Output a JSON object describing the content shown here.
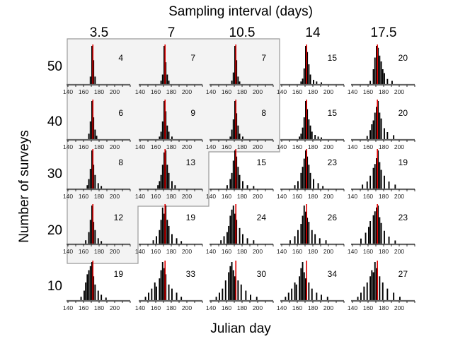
{
  "chart_data": {
    "type": "bar",
    "title": "",
    "top_label": "Sampling interval (days)",
    "xlabel": "Julian day",
    "ylabel": "Number of surveys",
    "column_labels": [
      "3.5",
      "7",
      "10.5",
      "14",
      "17.5"
    ],
    "row_labels": [
      "50",
      "40",
      "30",
      "20",
      "10"
    ],
    "x_axis": {
      "range": [
        140,
        220
      ],
      "ticks": [
        "140",
        "160",
        "180",
        "200"
      ]
    },
    "reference_line": {
      "x": 172,
      "color": "#e00000"
    },
    "shaded_region": "gray outlined block (top-left, staircase boundary)",
    "panels": [
      {
        "row": 0,
        "col": 0,
        "label": "4",
        "shaded": true,
        "bins": [
          [
            168,
            20
          ],
          [
            170,
            95
          ],
          [
            172,
            60
          ],
          [
            174,
            20
          ]
        ]
      },
      {
        "row": 0,
        "col": 1,
        "label": "7",
        "shaded": true,
        "bins": [
          [
            166,
            10
          ],
          [
            168,
            25
          ],
          [
            170,
            95
          ],
          [
            172,
            55
          ],
          [
            174,
            25
          ],
          [
            176,
            10
          ]
        ]
      },
      {
        "row": 0,
        "col": 2,
        "label": "7",
        "shaded": true,
        "bins": [
          [
            166,
            10
          ],
          [
            168,
            30
          ],
          [
            170,
            95
          ],
          [
            172,
            60
          ],
          [
            174,
            20
          ],
          [
            176,
            8
          ]
        ]
      },
      {
        "row": 0,
        "col": 3,
        "label": "15",
        "shaded": false,
        "bins": [
          [
            164,
            8
          ],
          [
            166,
            15
          ],
          [
            168,
            40
          ],
          [
            170,
            95
          ],
          [
            172,
            80
          ],
          [
            174,
            50
          ],
          [
            176,
            25
          ],
          [
            180,
            12
          ],
          [
            184,
            8
          ],
          [
            190,
            6
          ]
        ]
      },
      {
        "row": 0,
        "col": 4,
        "label": "20",
        "shaded": false,
        "bins": [
          [
            162,
            10
          ],
          [
            166,
            40
          ],
          [
            168,
            70
          ],
          [
            170,
            100
          ],
          [
            172,
            95
          ],
          [
            174,
            75
          ],
          [
            176,
            60
          ],
          [
            178,
            40
          ],
          [
            180,
            30
          ],
          [
            184,
            15
          ],
          [
            190,
            10
          ]
        ]
      },
      {
        "row": 1,
        "col": 0,
        "label": "6",
        "shaded": true,
        "bins": [
          [
            166,
            15
          ],
          [
            168,
            45
          ],
          [
            170,
            95
          ],
          [
            172,
            55
          ],
          [
            174,
            25
          ],
          [
            176,
            10
          ]
        ]
      },
      {
        "row": 1,
        "col": 1,
        "label": "9",
        "shaded": true,
        "bins": [
          [
            164,
            8
          ],
          [
            166,
            20
          ],
          [
            168,
            45
          ],
          [
            170,
            95
          ],
          [
            172,
            70
          ],
          [
            174,
            35
          ],
          [
            176,
            20
          ],
          [
            180,
            8
          ]
        ]
      },
      {
        "row": 1,
        "col": 2,
        "label": "8",
        "shaded": true,
        "bins": [
          [
            164,
            8
          ],
          [
            166,
            25
          ],
          [
            168,
            50
          ],
          [
            170,
            95
          ],
          [
            172,
            65
          ],
          [
            174,
            35
          ],
          [
            176,
            15
          ],
          [
            180,
            8
          ]
        ]
      },
      {
        "row": 1,
        "col": 3,
        "label": "15",
        "shaded": false,
        "bins": [
          [
            162,
            8
          ],
          [
            164,
            15
          ],
          [
            166,
            30
          ],
          [
            168,
            55
          ],
          [
            170,
            95
          ],
          [
            172,
            75
          ],
          [
            174,
            50
          ],
          [
            176,
            35
          ],
          [
            178,
            20
          ],
          [
            182,
            12
          ],
          [
            186,
            8
          ],
          [
            190,
            6
          ]
        ]
      },
      {
        "row": 1,
        "col": 4,
        "label": "20",
        "shaded": false,
        "bins": [
          [
            158,
            10
          ],
          [
            162,
            25
          ],
          [
            164,
            40
          ],
          [
            166,
            50
          ],
          [
            168,
            70
          ],
          [
            170,
            85
          ],
          [
            172,
            100
          ],
          [
            174,
            70
          ],
          [
            176,
            55
          ],
          [
            180,
            30
          ],
          [
            184,
            20
          ],
          [
            192,
            12
          ]
        ]
      },
      {
        "row": 2,
        "col": 0,
        "label": "8",
        "shaded": true,
        "bins": [
          [
            164,
            10
          ],
          [
            166,
            25
          ],
          [
            168,
            50
          ],
          [
            170,
            95
          ],
          [
            172,
            60
          ],
          [
            174,
            35
          ],
          [
            178,
            15
          ],
          [
            182,
            8
          ]
        ]
      },
      {
        "row": 2,
        "col": 1,
        "label": "13",
        "shaded": true,
        "bins": [
          [
            162,
            10
          ],
          [
            164,
            20
          ],
          [
            166,
            35
          ],
          [
            168,
            60
          ],
          [
            170,
            90
          ],
          [
            172,
            95
          ],
          [
            174,
            60
          ],
          [
            176,
            40
          ],
          [
            180,
            20
          ],
          [
            184,
            10
          ]
        ]
      },
      {
        "row": 2,
        "col": 2,
        "label": "15",
        "shaded": false,
        "bins": [
          [
            160,
            10
          ],
          [
            164,
            25
          ],
          [
            166,
            40
          ],
          [
            168,
            70
          ],
          [
            170,
            95
          ],
          [
            172,
            80
          ],
          [
            174,
            55
          ],
          [
            176,
            35
          ],
          [
            180,
            20
          ],
          [
            186,
            10
          ],
          [
            194,
            8
          ]
        ]
      },
      {
        "row": 2,
        "col": 3,
        "label": "23",
        "shaded": false,
        "bins": [
          [
            156,
            10
          ],
          [
            160,
            20
          ],
          [
            164,
            40
          ],
          [
            166,
            55
          ],
          [
            168,
            75
          ],
          [
            170,
            95
          ],
          [
            172,
            80
          ],
          [
            174,
            60
          ],
          [
            176,
            40
          ],
          [
            180,
            25
          ],
          [
            186,
            15
          ],
          [
            192,
            8
          ]
        ]
      },
      {
        "row": 2,
        "col": 4,
        "label": "19",
        "shaded": false,
        "bins": [
          [
            152,
            12
          ],
          [
            158,
            20
          ],
          [
            162,
            35
          ],
          [
            166,
            55
          ],
          [
            168,
            65
          ],
          [
            170,
            80
          ],
          [
            172,
            100
          ],
          [
            174,
            70
          ],
          [
            176,
            50
          ],
          [
            180,
            35
          ],
          [
            186,
            20
          ],
          [
            194,
            12
          ]
        ]
      },
      {
        "row": 3,
        "col": 0,
        "label": "12",
        "shaded": true,
        "bins": [
          [
            162,
            10
          ],
          [
            166,
            30
          ],
          [
            168,
            60
          ],
          [
            170,
            95
          ],
          [
            172,
            55
          ],
          [
            174,
            35
          ],
          [
            178,
            15
          ],
          [
            182,
            8
          ]
        ]
      },
      {
        "row": 3,
        "col": 1,
        "label": "19",
        "shaded": false,
        "bins": [
          [
            156,
            10
          ],
          [
            160,
            20
          ],
          [
            164,
            35
          ],
          [
            166,
            60
          ],
          [
            168,
            90
          ],
          [
            170,
            75
          ],
          [
            172,
            95
          ],
          [
            174,
            60
          ],
          [
            176,
            45
          ],
          [
            180,
            25
          ],
          [
            186,
            15
          ],
          [
            192,
            8
          ]
        ]
      },
      {
        "row": 3,
        "col": 2,
        "label": "24",
        "shaded": false,
        "bins": [
          [
            152,
            10
          ],
          [
            156,
            20
          ],
          [
            160,
            30
          ],
          [
            162,
            45
          ],
          [
            164,
            70
          ],
          [
            166,
            85
          ],
          [
            168,
            95
          ],
          [
            170,
            75
          ],
          [
            172,
            60
          ],
          [
            176,
            40
          ],
          [
            180,
            25
          ],
          [
            186,
            15
          ],
          [
            194,
            10
          ]
        ]
      },
      {
        "row": 3,
        "col": 3,
        "label": "26",
        "shaded": false,
        "bins": [
          [
            150,
            10
          ],
          [
            156,
            20
          ],
          [
            160,
            35
          ],
          [
            164,
            50
          ],
          [
            166,
            70
          ],
          [
            168,
            95
          ],
          [
            170,
            80
          ],
          [
            172,
            65
          ],
          [
            174,
            55
          ],
          [
            178,
            35
          ],
          [
            182,
            25
          ],
          [
            188,
            15
          ],
          [
            196,
            10
          ]
        ]
      },
      {
        "row": 3,
        "col": 4,
        "label": "23",
        "shaded": false,
        "bins": [
          [
            150,
            15
          ],
          [
            156,
            30
          ],
          [
            160,
            45
          ],
          [
            162,
            60
          ],
          [
            166,
            75
          ],
          [
            168,
            85
          ],
          [
            170,
            95
          ],
          [
            172,
            100
          ],
          [
            174,
            70
          ],
          [
            176,
            55
          ],
          [
            180,
            35
          ],
          [
            186,
            20
          ],
          [
            194,
            10
          ]
        ]
      },
      {
        "row": 4,
        "col": 0,
        "label": "19",
        "shaded": false,
        "bins": [
          [
            156,
            10
          ],
          [
            160,
            25
          ],
          [
            162,
            45
          ],
          [
            164,
            65
          ],
          [
            166,
            75
          ],
          [
            168,
            85
          ],
          [
            170,
            95
          ],
          [
            172,
            60
          ],
          [
            174,
            40
          ],
          [
            178,
            25
          ],
          [
            182,
            15
          ],
          [
            188,
            8
          ]
        ]
      },
      {
        "row": 4,
        "col": 1,
        "label": "33",
        "shaded": false,
        "bins": [
          [
            146,
            10
          ],
          [
            150,
            20
          ],
          [
            154,
            30
          ],
          [
            158,
            45
          ],
          [
            160,
            35
          ],
          [
            164,
            55
          ],
          [
            166,
            75
          ],
          [
            168,
            95
          ],
          [
            170,
            80
          ],
          [
            172,
            65
          ],
          [
            176,
            40
          ],
          [
            180,
            30
          ],
          [
            186,
            20
          ],
          [
            192,
            10
          ]
        ]
      },
      {
        "row": 4,
        "col": 2,
        "label": "30",
        "shaded": false,
        "bins": [
          [
            146,
            10
          ],
          [
            150,
            20
          ],
          [
            154,
            30
          ],
          [
            158,
            50
          ],
          [
            162,
            70
          ],
          [
            164,
            85
          ],
          [
            166,
            95
          ],
          [
            168,
            75
          ],
          [
            170,
            60
          ],
          [
            174,
            50
          ],
          [
            178,
            40
          ],
          [
            184,
            25
          ],
          [
            190,
            15
          ],
          [
            198,
            10
          ]
        ]
      },
      {
        "row": 4,
        "col": 3,
        "label": "34",
        "shaded": false,
        "bins": [
          [
            144,
            10
          ],
          [
            148,
            20
          ],
          [
            152,
            30
          ],
          [
            156,
            45
          ],
          [
            158,
            40
          ],
          [
            162,
            60
          ],
          [
            164,
            80
          ],
          [
            166,
            95
          ],
          [
            168,
            70
          ],
          [
            170,
            55
          ],
          [
            174,
            45
          ],
          [
            178,
            30
          ],
          [
            184,
            20
          ],
          [
            190,
            15
          ],
          [
            198,
            10
          ]
        ]
      },
      {
        "row": 4,
        "col": 4,
        "label": "27",
        "shaded": false,
        "bins": [
          [
            146,
            10
          ],
          [
            150,
            20
          ],
          [
            154,
            35
          ],
          [
            158,
            45
          ],
          [
            162,
            60
          ],
          [
            164,
            75
          ],
          [
            166,
            70
          ],
          [
            168,
            95
          ],
          [
            170,
            80
          ],
          [
            174,
            60
          ],
          [
            178,
            45
          ],
          [
            184,
            30
          ],
          [
            192,
            20
          ],
          [
            200,
            10
          ]
        ]
      }
    ]
  }
}
